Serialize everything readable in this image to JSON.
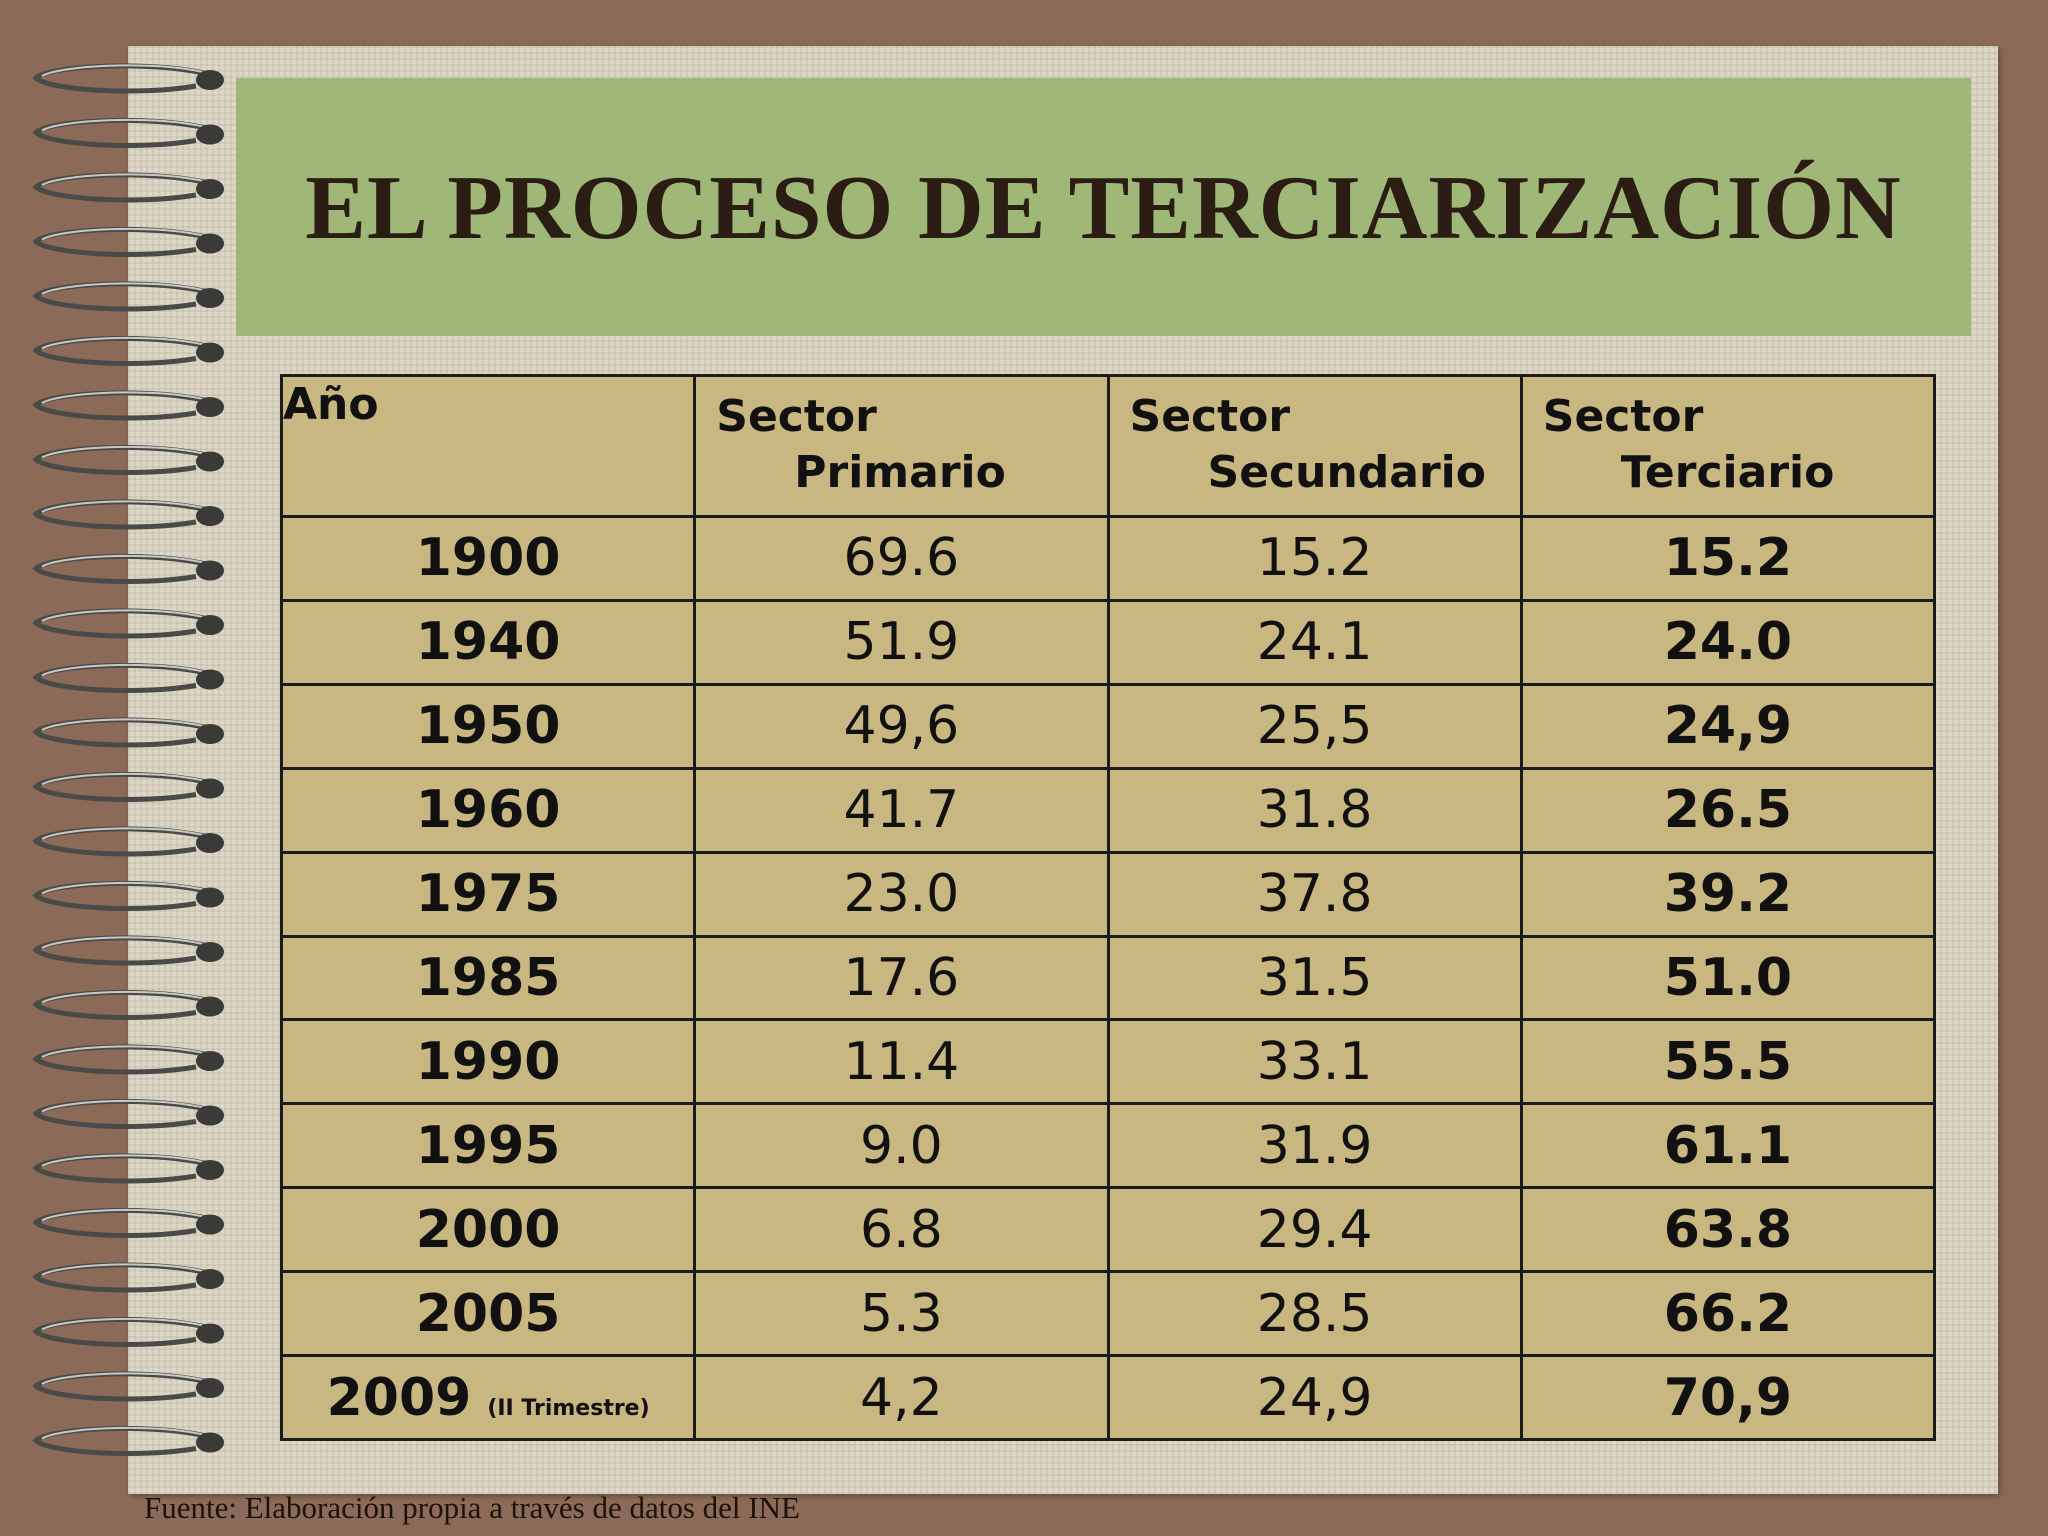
{
  "title": "EL PROCESO DE TERCIARIZACIÓN",
  "table": {
    "headers": {
      "year": "Año",
      "primary": {
        "line1": "Sector",
        "line2": "Primario"
      },
      "secondary": {
        "line1": "Sector",
        "line2": "Secundario"
      },
      "tertiary": {
        "line1": "Sector",
        "line2": "Terciario"
      }
    },
    "rows": [
      {
        "year": "1900",
        "note": "",
        "primary": "69.6",
        "secondary": "15.2",
        "tertiary": "15.2"
      },
      {
        "year": "1940",
        "note": "",
        "primary": "51.9",
        "secondary": "24.1",
        "tertiary": "24.0"
      },
      {
        "year": "1950",
        "note": "",
        "primary": "49,6",
        "secondary": "25,5",
        "tertiary": "24,9"
      },
      {
        "year": "1960",
        "note": "",
        "primary": "41.7",
        "secondary": "31.8",
        "tertiary": "26.5"
      },
      {
        "year": "1975",
        "note": "",
        "primary": "23.0",
        "secondary": "37.8",
        "tertiary": "39.2"
      },
      {
        "year": "1985",
        "note": "",
        "primary": "17.6",
        "secondary": "31.5",
        "tertiary": "51.0"
      },
      {
        "year": "1990",
        "note": "",
        "primary": "11.4",
        "secondary": "33.1",
        "tertiary": "55.5"
      },
      {
        "year": "1995",
        "note": "",
        "primary": "9.0",
        "secondary": "31.9",
        "tertiary": "61.1"
      },
      {
        "year": "2000",
        "note": "",
        "primary": "6.8",
        "secondary": "29.4",
        "tertiary": "63.8"
      },
      {
        "year": "2005",
        "note": "",
        "primary": "5.3",
        "secondary": "28.5",
        "tertiary": "66.2"
      },
      {
        "year": "2009",
        "note": "(II Trimestre)",
        "primary": "4,2",
        "secondary": "24,9",
        "tertiary": "70,9"
      }
    ]
  },
  "source": "Fuente: Elaboración propia a través de datos del  INE",
  "colors": {
    "background": "#8b6b58",
    "title_band": "#9fb878",
    "table_fill": "#c9b781",
    "tertiary_text": "#f01010"
  }
}
